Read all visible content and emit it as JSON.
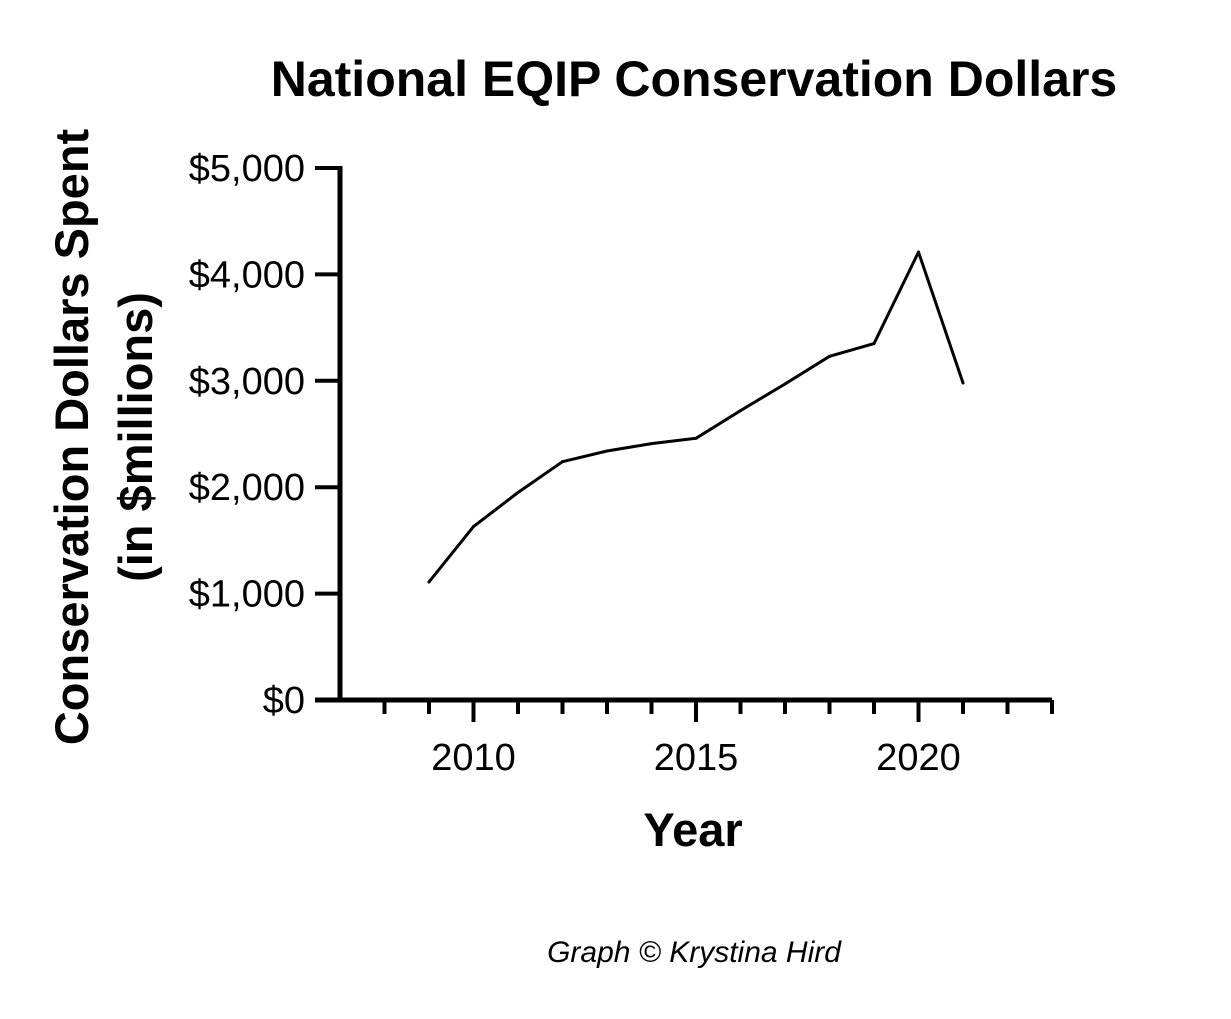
{
  "chart_data": {
    "type": "line",
    "title": "National EQIP Conservation Dollars",
    "xlabel": "Year",
    "ylabel": "Conservation Dollars Spent",
    "ylabel_line2": "(in $millions)",
    "xlim": [
      2007,
      2023
    ],
    "ylim": [
      0,
      5000
    ],
    "x_ticks": [
      2010,
      2015,
      2020
    ],
    "x_tick_labels": [
      "2010",
      "2015",
      "2020"
    ],
    "y_ticks": [
      0,
      1000,
      2000,
      3000,
      4000,
      5000
    ],
    "y_tick_labels": [
      "$0",
      "$1,000",
      "$2,000",
      "$3,000",
      "$4,000",
      "$5,000"
    ],
    "grid": false,
    "legend": "none",
    "series": [
      {
        "name": "EQIP Conservation Dollars",
        "x": [
          2009,
          2010,
          2011,
          2012,
          2013,
          2014,
          2015,
          2016,
          2017,
          2018,
          2019,
          2020,
          2021
        ],
        "values": [
          1110,
          1630,
          1950,
          2240,
          2340,
          2410,
          2460,
          2720,
          2970,
          3230,
          3350,
          4210,
          2980
        ]
      }
    ],
    "line_color": "#000000",
    "axis_color": "#000000"
  },
  "footer": {
    "credit": "Graph © Krystina Hird"
  }
}
